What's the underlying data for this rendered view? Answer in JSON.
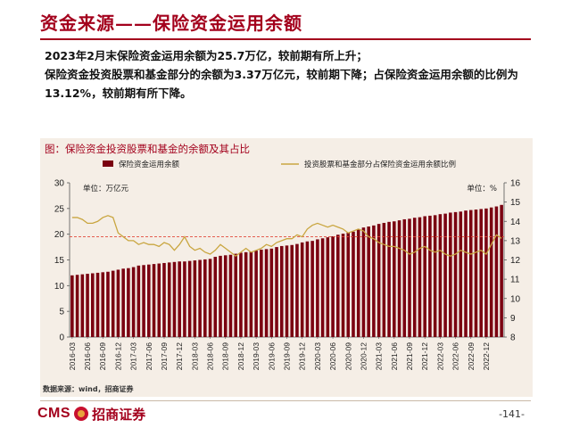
{
  "header": {
    "title": "资金来源——保险资金运用余额"
  },
  "summary": {
    "line1": "2023年2月末保险资金运用余额为25.7万亿，较前期有所上升；",
    "line2": "保险资金投资股票和基金部分的余额为3.37万亿元，较前期下降；占保险资金运用余额的比例为13.12%，较前期有所下降。"
  },
  "figure": {
    "title": "图：保险资金投资股票和基金的余额及其占比"
  },
  "source": "数据来源：wind，招商证券",
  "logo": {
    "brand": "CMS",
    "name": "招商证券"
  },
  "page_number": "-141-",
  "chart_data": {
    "type": "bar+line",
    "legend": [
      "保险资金运用余额",
      "投资股票和基金部分占保险资金运用余额比例"
    ],
    "left_unit": "单位：万亿元",
    "right_unit": "单位：%",
    "y_left": {
      "min": 0,
      "max": 30,
      "step": 5,
      "ticks": [
        "0",
        "5",
        "10",
        "15",
        "20",
        "25",
        "30"
      ]
    },
    "y_right": {
      "min": 8,
      "max": 16,
      "step": 1,
      "ticks": [
        "8",
        "9",
        "10",
        "11",
        "12",
        "13",
        "14",
        "15",
        "16"
      ]
    },
    "reference_line": 13.2,
    "x_tick_labels": [
      "2016-03",
      "2016-06",
      "2016-09",
      "2016-12",
      "2017-03",
      "2017-06",
      "2017-09",
      "2017-12",
      "2018-03",
      "2018-06",
      "2018-09",
      "2018-12",
      "2019-03",
      "2019-06",
      "2019-09",
      "2019-12",
      "2020-03",
      "2020-06",
      "2020-09",
      "2020-12",
      "2021-03",
      "2021-06",
      "2021-09",
      "2021-12",
      "2022-03",
      "2022-06",
      "2022-09",
      "2022-12"
    ],
    "bar_values": [
      12.0,
      12.1,
      12.2,
      12.3,
      12.4,
      12.5,
      12.6,
      12.7,
      12.9,
      13.1,
      13.3,
      13.4,
      13.6,
      13.9,
      14.0,
      14.1,
      14.2,
      14.3,
      14.4,
      14.5,
      14.6,
      14.7,
      14.7,
      14.8,
      14.9,
      15.0,
      15.1,
      15.2,
      15.6,
      15.8,
      15.9,
      16.0,
      16.2,
      16.4,
      16.5,
      16.6,
      16.8,
      17.0,
      17.1,
      17.2,
      17.5,
      17.7,
      17.8,
      17.9,
      18.1,
      18.4,
      18.6,
      18.7,
      19.0,
      19.2,
      19.4,
      19.6,
      19.9,
      20.1,
      20.3,
      20.5,
      21.0,
      21.3,
      21.5,
      21.7,
      22.0,
      22.2,
      22.4,
      22.5,
      22.7,
      22.9,
      23.0,
      23.2,
      23.3,
      23.5,
      23.6,
      23.7,
      23.9,
      24.0,
      24.2,
      24.3,
      24.4,
      24.6,
      24.7,
      24.8,
      24.9,
      25.0,
      25.2,
      25.4,
      25.7
    ],
    "line_values": [
      14.2,
      14.2,
      14.1,
      13.9,
      13.9,
      14.0,
      14.2,
      14.3,
      14.2,
      13.4,
      13.2,
      13.0,
      13.0,
      12.8,
      12.9,
      12.8,
      12.8,
      12.7,
      12.9,
      12.8,
      12.5,
      12.8,
      13.2,
      12.7,
      12.5,
      12.6,
      12.4,
      12.3,
      12.5,
      12.8,
      12.6,
      12.4,
      12.2,
      12.4,
      12.6,
      12.4,
      12.5,
      12.6,
      12.8,
      12.7,
      12.9,
      13.0,
      13.1,
      13.1,
      13.3,
      13.2,
      13.6,
      13.8,
      13.9,
      13.8,
      13.7,
      13.8,
      13.7,
      13.6,
      13.4,
      13.5,
      13.6,
      13.5,
      13.2,
      13.1,
      12.9,
      12.8,
      12.7,
      12.7,
      12.6,
      12.5,
      12.3,
      12.4,
      12.6,
      12.7,
      12.5,
      12.4,
      12.5,
      12.3,
      12.2,
      12.3,
      12.5,
      12.4,
      12.3,
      12.4,
      12.5,
      12.3,
      12.8,
      13.3,
      13.12
    ]
  },
  "colors": {
    "bar": "#7a0010",
    "line": "#c9a640",
    "reference": "#e24a3b",
    "accent": "#a3001c"
  }
}
